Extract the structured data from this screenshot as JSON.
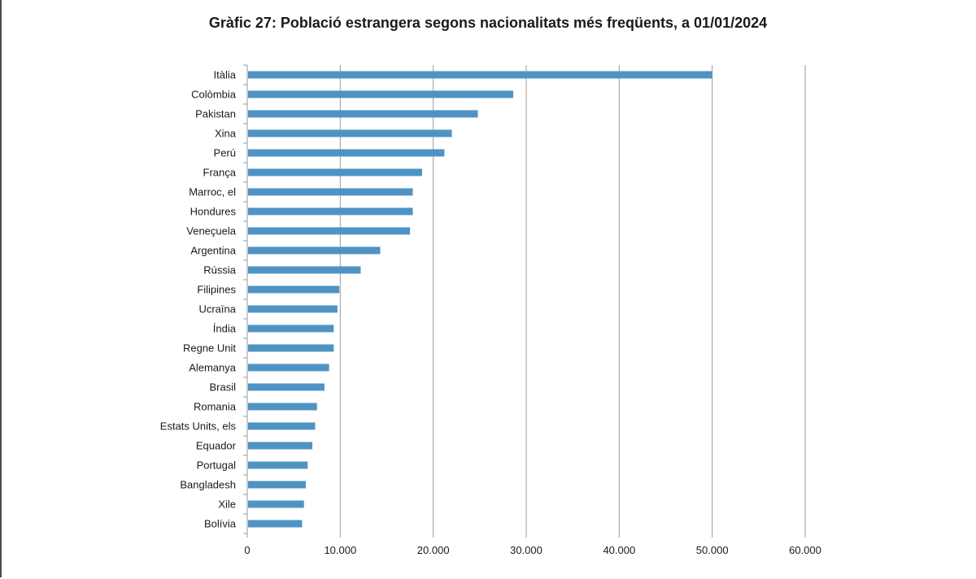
{
  "chart_data": {
    "type": "bar",
    "orientation": "horizontal",
    "title": "Gràfic 27: Població estrangera segons nacionalitats més freqüents, a 01/01/2024",
    "xlabel": "",
    "ylabel": "",
    "categories": [
      "Itàlia",
      "Colòmbia",
      "Pakistan",
      "Xina",
      "Perú",
      "França",
      "Marroc, el",
      "Hondures",
      "Veneçuela",
      "Argentina",
      "Rússia",
      "Filipines",
      "Ucraïna",
      "Índia",
      "Regne Unit",
      "Alemanya",
      "Brasil",
      "Romania",
      "Estats Units, els",
      "Equador",
      "Portugal",
      "Bangladesh",
      "Xile",
      "Bolívia"
    ],
    "values": [
      50000,
      28600,
      24800,
      22000,
      21200,
      18800,
      17800,
      17800,
      17500,
      14300,
      12200,
      9900,
      9700,
      9300,
      9300,
      8800,
      8300,
      7500,
      7300,
      7000,
      6500,
      6300,
      6100,
      5900
    ],
    "xlim": [
      0,
      60000
    ],
    "xticks": [
      0,
      10000,
      20000,
      30000,
      40000,
      50000,
      60000
    ],
    "xtick_labels": [
      "0",
      "10.000",
      "20.000",
      "30.000",
      "40.000",
      "50.000",
      "60.000"
    ],
    "grid": "vertical",
    "legend": "none",
    "bar_color": "#4f93c4",
    "grid_color": "#9a9a9a",
    "axis_color": "#9a9a9a"
  }
}
